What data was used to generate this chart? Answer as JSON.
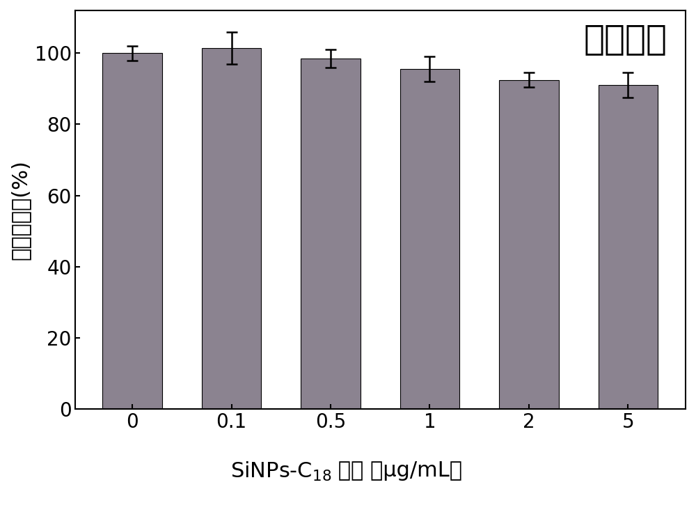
{
  "categories": [
    "0",
    "0.1",
    "0.5",
    "1",
    "2",
    "5"
  ],
  "values": [
    100.0,
    101.5,
    98.5,
    95.5,
    92.5,
    91.0
  ],
  "errors": [
    2.0,
    4.5,
    2.5,
    3.5,
    2.0,
    3.5
  ],
  "bar_color": "#8B8390",
  "ylabel": "细菌存活率(%)",
  "annotation": "大肠杆菌",
  "xlabel_prefix": "SiNPs-C",
  "xlabel_sub": "18",
  "xlabel_suffix": " 浓度 （μg/mL）",
  "ylim": [
    0,
    112
  ],
  "yticks": [
    0,
    20,
    40,
    60,
    80,
    100
  ],
  "background_color": "#ffffff",
  "bar_width": 0.6,
  "label_fontsize": 22,
  "tick_fontsize": 20,
  "annotation_fontsize": 36,
  "capsize": 6
}
